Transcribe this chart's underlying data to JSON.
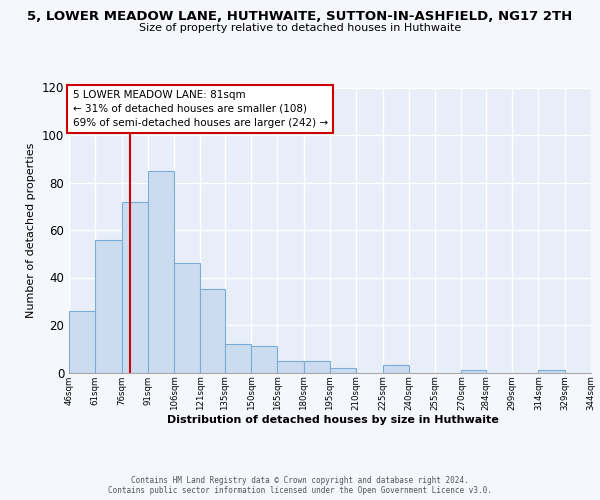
{
  "title": "5, LOWER MEADOW LANE, HUTHWAITE, SUTTON-IN-ASHFIELD, NG17 2TH",
  "subtitle": "Size of property relative to detached houses in Huthwaite",
  "xlabel": "Distribution of detached houses by size in Huthwaite",
  "ylabel": "Number of detached properties",
  "bin_edges": [
    46,
    61,
    76,
    91,
    106,
    121,
    135,
    150,
    165,
    180,
    195,
    210,
    225,
    240,
    255,
    270,
    284,
    299,
    314,
    329,
    344
  ],
  "bar_heights": [
    26,
    56,
    72,
    85,
    46,
    35,
    12,
    11,
    5,
    5,
    2,
    0,
    3,
    0,
    0,
    1,
    0,
    0,
    1,
    0
  ],
  "bar_color": "#ccdcf0",
  "bar_edge_color": "#7aadd6",
  "background_color": "#e8eef8",
  "grid_color": "#ffffff",
  "vline_x": 81,
  "vline_color": "#cc0000",
  "annotation_line1": "5 LOWER MEADOW LANE: 81sqm",
  "annotation_line2": "← 31% of detached houses are smaller (108)",
  "annotation_line3": "69% of semi-detached houses are larger (242) →",
  "annotation_box_color": "#ffffff",
  "annotation_box_edge": "#cc0000",
  "ylim": [
    0,
    120
  ],
  "footer_text": "Contains HM Land Registry data © Crown copyright and database right 2024.\nContains public sector information licensed under the Open Government Licence v3.0.",
  "tick_labels": [
    "46sqm",
    "61sqm",
    "76sqm",
    "91sqm",
    "106sqm",
    "121sqm",
    "135sqm",
    "150sqm",
    "165sqm",
    "180sqm",
    "195sqm",
    "210sqm",
    "225sqm",
    "240sqm",
    "255sqm",
    "270sqm",
    "284sqm",
    "299sqm",
    "314sqm",
    "329sqm",
    "344sqm"
  ],
  "fig_bg_color": "#f5f7fd",
  "yticks": [
    0,
    20,
    40,
    60,
    80,
    100,
    120
  ]
}
